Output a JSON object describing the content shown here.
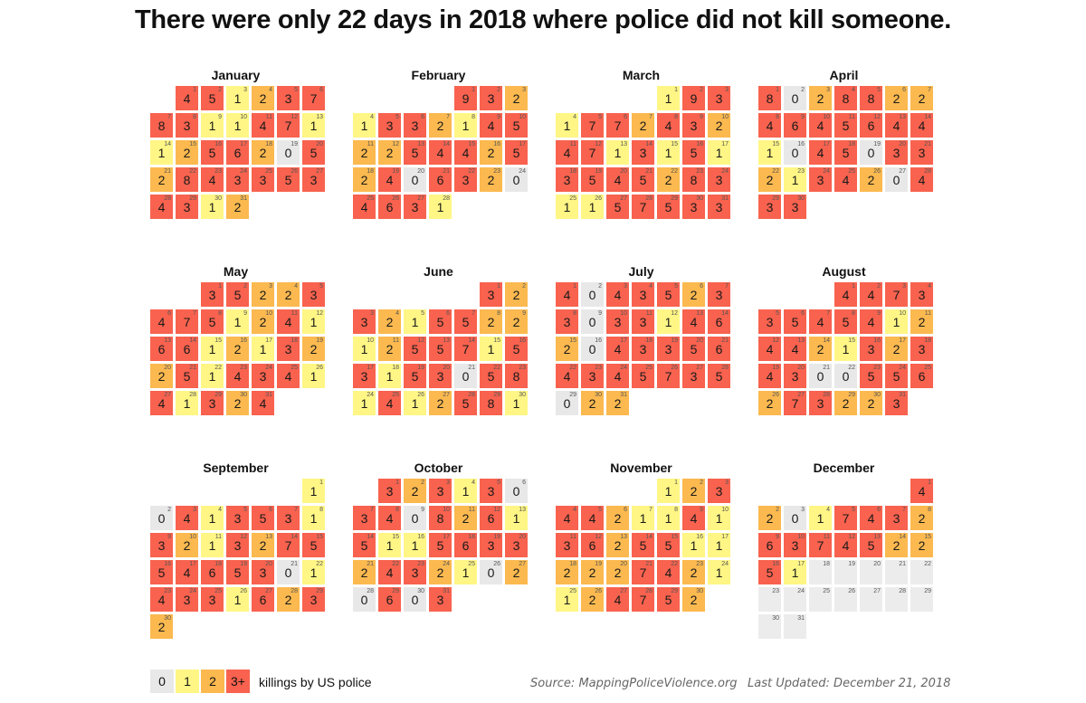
{
  "title": "There were only 22 days in 2018 where police did not kill someone.",
  "colors": {
    "zero": "#e8e8e8",
    "one": "#fff685",
    "two": "#fbb94f",
    "three_plus": "#f8624e",
    "nodata": "#ececec"
  },
  "legend": {
    "labels": [
      "0",
      "1",
      "2",
      "3+"
    ],
    "text": "killings by US police"
  },
  "source": "Source: MappingPoliceViolence.org",
  "updated": "Last Updated: December 21, 2018",
  "chart_data": {
    "type": "heatmap",
    "year": 2018,
    "months": [
      {
        "name": "January",
        "first_weekday": 1,
        "values": [
          4,
          5,
          1,
          2,
          3,
          7,
          8,
          3,
          1,
          1,
          4,
          7,
          1,
          1,
          2,
          5,
          6,
          2,
          0,
          5,
          2,
          8,
          4,
          3,
          3,
          5,
          3,
          4,
          3,
          1,
          2
        ]
      },
      {
        "name": "February",
        "first_weekday": 4,
        "values": [
          9,
          3,
          2,
          1,
          3,
          3,
          2,
          1,
          4,
          5,
          2,
          2,
          5,
          4,
          4,
          2,
          5,
          2,
          4,
          0,
          6,
          3,
          2,
          0,
          4,
          6,
          3,
          1
        ]
      },
      {
        "name": "March",
        "first_weekday": 4,
        "values": [
          1,
          9,
          3,
          1,
          7,
          7,
          2,
          4,
          3,
          2,
          4,
          7,
          1,
          3,
          1,
          5,
          1,
          3,
          5,
          4,
          5,
          2,
          8,
          3,
          1,
          1,
          5,
          7,
          5,
          3,
          3
        ]
      },
      {
        "name": "April",
        "first_weekday": 0,
        "values": [
          8,
          0,
          2,
          8,
          8,
          2,
          2,
          4,
          6,
          4,
          5,
          6,
          4,
          4,
          1,
          0,
          4,
          5,
          0,
          3,
          3,
          2,
          1,
          3,
          4,
          2,
          0,
          4,
          3,
          3
        ]
      },
      {
        "name": "May",
        "first_weekday": 2,
        "values": [
          3,
          5,
          2,
          2,
          3,
          4,
          7,
          5,
          1,
          2,
          4,
          1,
          6,
          6,
          1,
          2,
          1,
          3,
          2,
          2,
          5,
          1,
          4,
          3,
          4,
          1,
          4,
          1,
          3,
          2,
          4
        ]
      },
      {
        "name": "June",
        "first_weekday": 5,
        "values": [
          3,
          2,
          3,
          2,
          1,
          5,
          5,
          2,
          2,
          1,
          2,
          5,
          5,
          7,
          1,
          5,
          3,
          1,
          5,
          3,
          0,
          5,
          8,
          1,
          4,
          1,
          2,
          5,
          8,
          1
        ]
      },
      {
        "name": "July",
        "first_weekday": 0,
        "values": [
          4,
          0,
          4,
          3,
          5,
          2,
          3,
          3,
          0,
          3,
          3,
          1,
          4,
          6,
          2,
          0,
          4,
          3,
          3,
          5,
          6,
          4,
          3,
          4,
          5,
          7,
          3,
          5,
          0,
          2,
          2
        ]
      },
      {
        "name": "August",
        "first_weekday": 3,
        "values": [
          4,
          4,
          7,
          3,
          3,
          5,
          4,
          5,
          4,
          1,
          2,
          4,
          4,
          2,
          1,
          3,
          2,
          3,
          4,
          3,
          0,
          0,
          5,
          5,
          6,
          2,
          7,
          3,
          2,
          2,
          3
        ]
      },
      {
        "name": "September",
        "first_weekday": 6,
        "values": [
          1,
          0,
          4,
          1,
          3,
          5,
          3,
          1,
          3,
          2,
          1,
          3,
          2,
          7,
          5,
          5,
          4,
          6,
          5,
          3,
          0,
          1,
          4,
          3,
          3,
          1,
          6,
          2,
          3,
          2
        ]
      },
      {
        "name": "October",
        "first_weekday": 1,
        "values": [
          3,
          2,
          3,
          1,
          3,
          0,
          3,
          4,
          0,
          8,
          2,
          6,
          1,
          5,
          1,
          1,
          5,
          6,
          3,
          3,
          2,
          4,
          3,
          2,
          1,
          0,
          2,
          0,
          6,
          0,
          3
        ]
      },
      {
        "name": "November",
        "first_weekday": 4,
        "values": [
          1,
          2,
          3,
          4,
          4,
          2,
          1,
          1,
          4,
          1,
          3,
          6,
          2,
          5,
          5,
          1,
          1,
          2,
          2,
          2,
          7,
          4,
          2,
          1,
          1,
          2,
          4,
          7,
          5,
          2
        ]
      },
      {
        "name": "December",
        "first_weekday": 6,
        "values": [
          4,
          2,
          0,
          1,
          7,
          4,
          3,
          2,
          6,
          3,
          7,
          4,
          5,
          2,
          2,
          5,
          1,
          null,
          null,
          null,
          null,
          null,
          null,
          null,
          null,
          null,
          null,
          null,
          null,
          null,
          null
        ]
      }
    ]
  }
}
